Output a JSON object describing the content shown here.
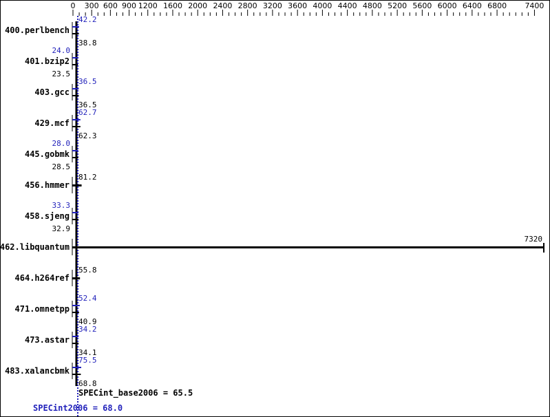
{
  "chart_data": {
    "type": "bar",
    "orientation": "horizontal",
    "xlim": [
      0,
      7400
    ],
    "x_ticks_labeled": [
      0,
      300,
      600,
      900,
      1200,
      1600,
      2000,
      2400,
      2800,
      3200,
      3600,
      4000,
      4400,
      4800,
      5200,
      5600,
      6000,
      6400,
      6800,
      7400
    ],
    "categories": [
      "400.perlbench",
      "401.bzip2",
      "403.gcc",
      "429.mcf",
      "445.gobmk",
      "456.hmmer",
      "458.sjeng",
      "462.libquantum",
      "464.h264ref",
      "471.omnetpp",
      "473.astar",
      "483.xalancbmk"
    ],
    "series": [
      {
        "name": "SPECint2006",
        "color": "#2222bb",
        "values": [
          42.2,
          24.0,
          36.5,
          62.7,
          28.0,
          null,
          33.3,
          null,
          null,
          52.4,
          34.2,
          75.5
        ]
      },
      {
        "name": "SPECint_base2006",
        "color": "#000000",
        "values": [
          38.8,
          23.5,
          36.5,
          62.3,
          28.5,
          81.2,
          32.9,
          7320,
          55.8,
          40.9,
          34.1,
          68.8
        ]
      }
    ],
    "summary": {
      "base_label": "SPECint_base2006 = 65.5",
      "base_value": 65.5,
      "peak_label": "SPECint2006 = 68.0",
      "peak_value": 68.0
    },
    "grid": false
  }
}
